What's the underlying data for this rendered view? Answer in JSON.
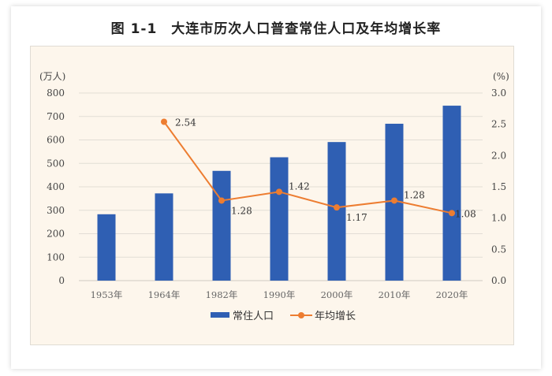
{
  "chart_data": {
    "type": "bar+line",
    "title": "图 1-1　大连市历次人口普查常住人口及年均增长率",
    "categories": [
      "1953年",
      "1964年",
      "1982年",
      "1990年",
      "2000年",
      "2010年",
      "2020年"
    ],
    "y_left": {
      "label": "(万人)",
      "range": [
        0,
        800
      ],
      "ticks": [
        "0",
        "100",
        "200",
        "300",
        "400",
        "500",
        "600",
        "700",
        "800"
      ]
    },
    "y_right": {
      "label": "(%)",
      "range": [
        0,
        3.0
      ],
      "ticks": [
        "0.0",
        "0.5",
        "1.0",
        "1.5",
        "2.0",
        "2.5",
        "3.0"
      ]
    },
    "grid": true,
    "legend_position": "bottom",
    "series": [
      {
        "name": "常住人口",
        "type": "bar",
        "axis": "left",
        "color": "#2f5fb3",
        "values": [
          283,
          372,
          468,
          526,
          591,
          669,
          746
        ]
      },
      {
        "name": "年均增长",
        "type": "line",
        "axis": "right",
        "color": "#ed7d31",
        "values": [
          null,
          2.54,
          1.28,
          1.42,
          1.17,
          1.28,
          1.08
        ],
        "labels": [
          "",
          "2.54",
          "1.28",
          "1.42",
          "1.17",
          "1.28",
          "1.08"
        ]
      }
    ]
  }
}
